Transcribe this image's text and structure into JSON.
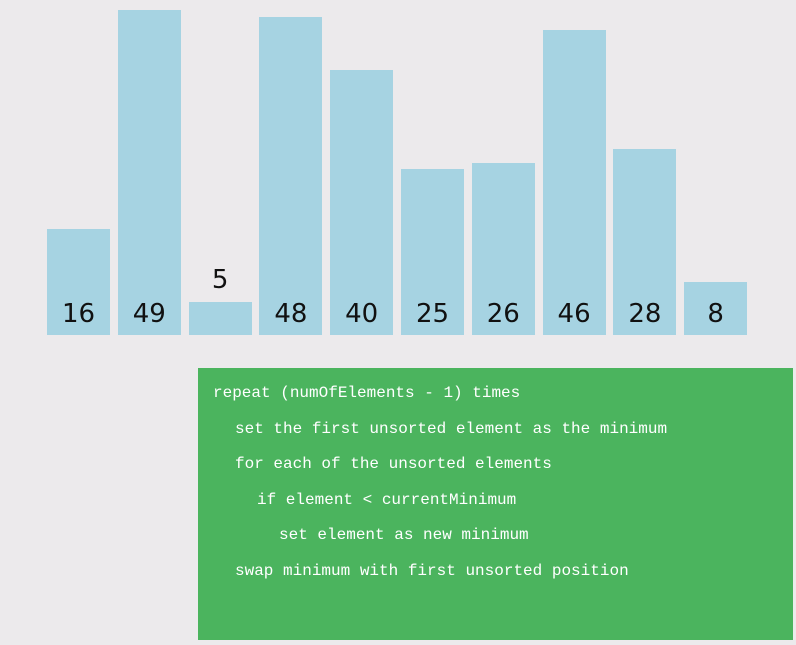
{
  "chart_data": {
    "type": "bar",
    "values": [
      16,
      49,
      5,
      48,
      40,
      25,
      26,
      46,
      28,
      8
    ],
    "colors": {
      "bar": "#a6d3e2",
      "background": "#eceaec"
    }
  },
  "pseudocode": {
    "lines": [
      {
        "text": "repeat (numOfElements - 1) times",
        "indent": 0
      },
      {
        "text": "set the first unsorted element as the minimum",
        "indent": 1
      },
      {
        "text": "for each of the unsorted elements",
        "indent": 1
      },
      {
        "text": "if element < currentMinimum",
        "indent": 2
      },
      {
        "text": "set element as new minimum",
        "indent": 3
      },
      {
        "text": "swap minimum with first unsorted position",
        "indent": 1
      }
    ],
    "colors": {
      "panel": "#4bb45e",
      "text": "#ffffff"
    }
  }
}
